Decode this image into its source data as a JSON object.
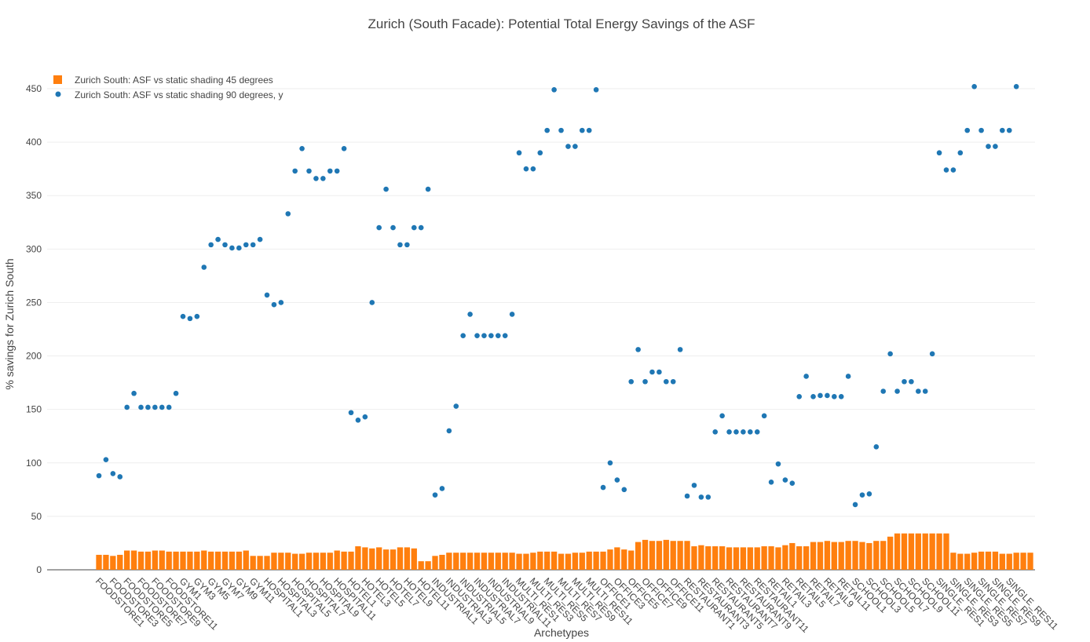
{
  "chart_data": {
    "type": "bar",
    "title": "Zurich (South Facade): Potential Total Energy Savings of the ASF",
    "xlabel": "Archetypes",
    "ylabel": "% savings  for Zurich South",
    "ylim": [
      0,
      470
    ],
    "yticks": [
      0,
      50,
      100,
      150,
      200,
      250,
      300,
      350,
      400,
      450
    ],
    "grid": "horizontal",
    "legend_position": "top-left",
    "x_visible_tick_labels": [
      "FOODSTORE1",
      "FOODSTORE3",
      "FOODSTORE5",
      "FOODSTORE7",
      "FOODSTORE9",
      "FOODSTORE11",
      "GYM1",
      "GYM3",
      "GYM5",
      "GYM7",
      "GYM9",
      "GYM11",
      "HOSPITAL1",
      "HOSPITAL3",
      "HOSPITAL5",
      "HOSPITAL7",
      "HOSPITAL9",
      "HOSPITAL11",
      "HOTEL1",
      "HOTEL3",
      "HOTEL5",
      "HOTEL7",
      "HOTEL9",
      "HOTEL11",
      "INDUSTRIAL1",
      "INDUSTRIAL3",
      "INDUSTRIAL5",
      "INDUSTRIAL7",
      "INDUSTRIAL9",
      "INDUSTRIAL11",
      "MULTI_RES1",
      "MULTI_RES3",
      "MULTI_RES5",
      "MULTI_RES7",
      "MULTI_RES9",
      "MULTI_RES11",
      "OFFICE1",
      "OFFICE3",
      "OFFICE5",
      "OFFICE7",
      "OFFICE9",
      "OFFICE11",
      "RESTAURANT1",
      "RESTAURANT3",
      "RESTAURANT5",
      "RESTAURANT7",
      "RESTAURANT9",
      "RESTAURANT11",
      "RETAIL1",
      "RETAIL3",
      "RETAIL5",
      "RETAIL7",
      "RETAIL9",
      "RETAIL11",
      "SCHOOL1",
      "SCHOOL3",
      "SCHOOL5",
      "SCHOOL7",
      "SCHOOL9",
      "SCHOOL11",
      "SINGLE_RES1",
      "SINGLE_RES3",
      "SINGLE_RES5",
      "SINGLE_RES7",
      "SINGLE_RES9",
      "SINGLE_RES11"
    ],
    "series": [
      {
        "name": "Zurich South: ASF vs static shading 45 degrees",
        "type": "bar",
        "color": "#ff7f0e",
        "values": [
          14,
          14,
          13,
          14,
          18,
          18,
          17,
          17,
          18,
          18,
          17,
          17,
          17,
          17,
          17,
          18,
          17,
          17,
          17,
          17,
          17,
          18,
          13,
          13,
          13,
          16,
          16,
          16,
          15,
          15,
          16,
          16,
          16,
          16,
          18,
          17,
          17,
          22,
          21,
          20,
          21,
          19,
          19,
          21,
          21,
          20,
          8,
          8,
          13,
          14,
          16,
          16,
          16,
          16,
          16,
          16,
          16,
          16,
          16,
          16,
          15,
          15,
          16,
          17,
          17,
          17,
          15,
          15,
          16,
          16,
          17,
          17,
          17,
          19,
          21,
          19,
          18,
          26,
          28,
          27,
          27,
          28,
          27,
          27,
          27,
          22,
          23,
          22,
          22,
          22,
          21,
          21,
          21,
          21,
          21,
          22,
          22,
          21,
          23,
          25,
          22,
          22,
          26,
          26,
          27,
          26,
          26,
          27,
          27,
          26,
          25,
          27,
          27,
          31,
          34,
          34,
          34,
          34,
          34,
          34,
          34,
          34,
          16,
          15,
          15,
          16,
          17,
          17,
          17,
          15,
          15,
          16,
          16,
          16
        ]
      },
      {
        "name": "Zurich South: ASF vs static shading 90 degrees, y",
        "type": "scatter",
        "color": "#1f77b4",
        "values": [
          88,
          103,
          90,
          87,
          152,
          165,
          152,
          152,
          152,
          152,
          152,
          165,
          237,
          235,
          237,
          283,
          304,
          309,
          304,
          301,
          301,
          304,
          304,
          309,
          257,
          248,
          250,
          333,
          373,
          394,
          373,
          366,
          366,
          373,
          373,
          394,
          147,
          140,
          143,
          250,
          320,
          356,
          320,
          304,
          304,
          320,
          320,
          356,
          70,
          76,
          130,
          153,
          219,
          239,
          219,
          219,
          219,
          219,
          219,
          239,
          390,
          375,
          375,
          390,
          411,
          449,
          411,
          396,
          396,
          411,
          411,
          449,
          77,
          100,
          84,
          75,
          176,
          206,
          176,
          185,
          185,
          176,
          176,
          206,
          69,
          79,
          68,
          68,
          129,
          144,
          129,
          129,
          129,
          129,
          129,
          144,
          82,
          99,
          84,
          81,
          162,
          181,
          162,
          163,
          163,
          162,
          162,
          181,
          61,
          70,
          71,
          115,
          167,
          202,
          167,
          176,
          176,
          167,
          167,
          202,
          390,
          374,
          374,
          390,
          411,
          452,
          411,
          396,
          396,
          411,
          411,
          452
        ]
      }
    ]
  }
}
